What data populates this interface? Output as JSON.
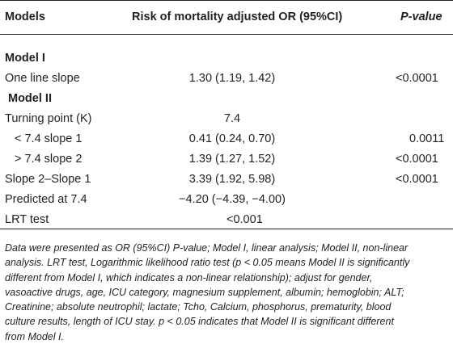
{
  "header": {
    "models": "Models",
    "risk": "Risk of mortality adjusted OR (95%CI)",
    "pvalue": "P-value"
  },
  "rows": [
    {
      "label": "Model I",
      "value": "",
      "p": ""
    },
    {
      "label": "One line slope",
      "value": "1.30 (1.19, 1.42)",
      "p": "<0.0001"
    },
    {
      "label": "Model II",
      "value": "",
      "p": ""
    },
    {
      "label": "Turning point (K)",
      "value": "7.4",
      "p": ""
    },
    {
      "label": "< 7.4 slope 1",
      "value": "0.41 (0.24, 0.70)",
      "p": "0.0011"
    },
    {
      "label": "> 7.4 slope 2",
      "value": "1.39 (1.27, 1.52)",
      "p": "<0.0001"
    },
    {
      "label": "Slope 2–Slope 1",
      "value": "3.39 (1.92, 5.98)",
      "p": "<0.0001"
    },
    {
      "label": "Predicted at 7.4",
      "value": "−4.20 (−4.39, −4.00)",
      "p": ""
    },
    {
      "label": "LRT test",
      "value": "<0.001",
      "p": ""
    }
  ],
  "footnote": [
    "Data were presented as OR (95%CI) P-value; Model I, linear analysis; Model II, non-linear",
    "analysis. LRT test, Logarithmic likelihood ratio test (p < 0.05 means Model II is significantly",
    "different from Model I, which indicates a non-linear relationship); adjust for gender,",
    "vasoactive drugs, age, ICU category, magnesium supplement, albumin; hemoglobin; ALT;",
    "Creatinine; absolute neutrophil; lactate; Tcho, Calcium, phosphorus, prematurity, blood",
    "culture results, length of ICU stay. p < 0.05 indicates that Model II is significant different",
    "from Model I."
  ]
}
